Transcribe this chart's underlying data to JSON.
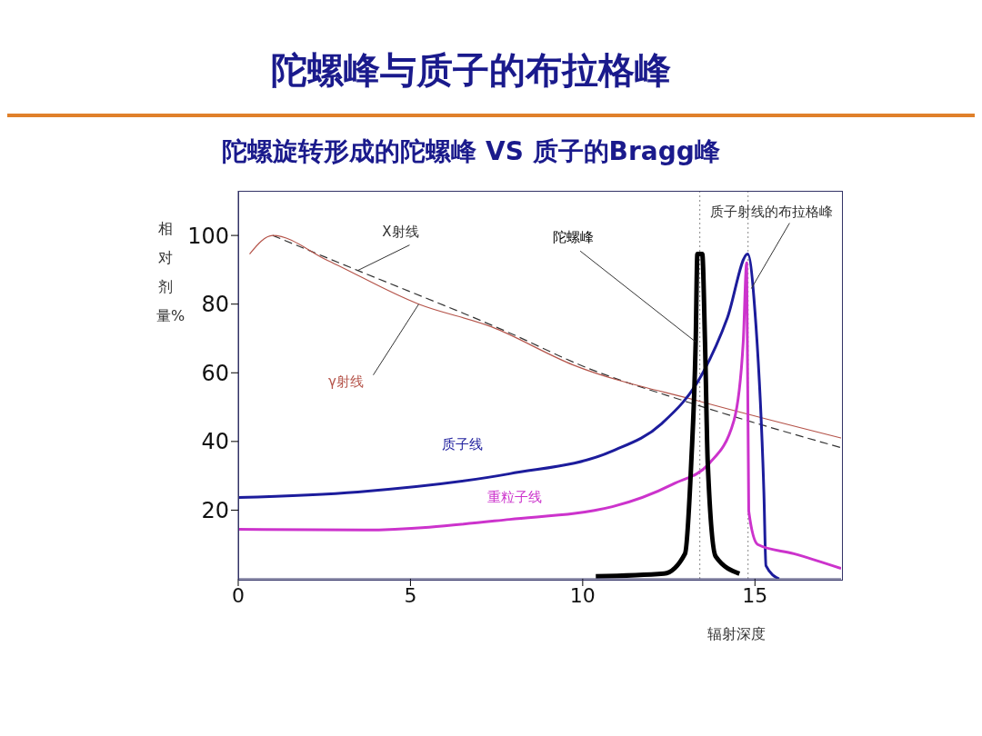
{
  "chart_data": {
    "type": "line",
    "title": "陀螺峰与质子的布拉格峰",
    "subtitle": "陀螺旋转形成的陀螺峰 VS 质子的Bragg峰",
    "xlabel": "辐射深度",
    "ylabel": "相对剂量%",
    "xlim": [
      0,
      17.5
    ],
    "xticks": [
      0,
      5,
      10,
      15
    ],
    "ylim": [
      0,
      113
    ],
    "yticks": [
      20,
      40,
      60,
      80,
      100
    ],
    "marker": "none",
    "series": [
      {
        "name": "X射线",
        "color": "#333333",
        "line_style": "dashed",
        "x": [
          1.0,
          3.47,
          7.88,
          9.99,
          13.07,
          17.5
        ],
        "values": [
          100,
          89.8,
          71.6,
          62.0,
          51.4,
          38.2
        ]
      },
      {
        "name": "γ射线",
        "color": "#b5544a",
        "line_style": "solid",
        "x": [
          0.33,
          1.0,
          2.6,
          5.24,
          7.35,
          9.72,
          13.5,
          17.5
        ],
        "values": [
          94.6,
          100,
          92.7,
          80,
          73.4,
          62.3,
          51.4,
          41
        ]
      },
      {
        "name": "质子线",
        "color": "#1c1c9c",
        "line_style": "solid",
        "x": [
          0,
          3.47,
          7.88,
          10.86,
          12.28,
          13.5,
          14.2,
          14.79,
          15.0,
          15.26,
          15.32,
          15.7
        ],
        "values": [
          23.7,
          25.3,
          30.6,
          37.2,
          45.1,
          60.2,
          76,
          94.6,
          77.9,
          25,
          3.8,
          0
        ]
      },
      {
        "name": "重粒子线",
        "color": "#cc33cc",
        "line_style": "solid",
        "x": [
          0,
          3.65,
          7.88,
          10.86,
          12.63,
          13.68,
          14.39,
          14.66,
          14.76,
          14.82,
          15.08,
          16.13,
          17.5
        ],
        "values": [
          14.4,
          14.2,
          17.3,
          21,
          27.6,
          33.7,
          46.1,
          69,
          92,
          19.7,
          10,
          7.3,
          3
        ]
      },
      {
        "name": "陀螺峰",
        "color": "#000000",
        "line_style": "solid",
        "x": [
          10.38,
          12.36,
          12.97,
          13.15,
          13.28,
          13.33,
          13.47,
          13.55,
          13.63,
          13.86,
          14.55
        ],
        "values": [
          0.7,
          1.5,
          7.3,
          33.7,
          69,
          94.6,
          94.6,
          69,
          33.7,
          6.5,
          1.5
        ]
      }
    ],
    "ref_lines": [
      {
        "axis": "x",
        "value": 13.4,
        "color": "#888888",
        "line_style": "dotted"
      },
      {
        "axis": "x",
        "value": 14.8,
        "color": "#888888",
        "line_style": "dotted"
      }
    ],
    "annotations": [
      {
        "text": "质子射线的布拉格峰",
        "x": 14.79,
        "y": 94.6
      }
    ]
  }
}
